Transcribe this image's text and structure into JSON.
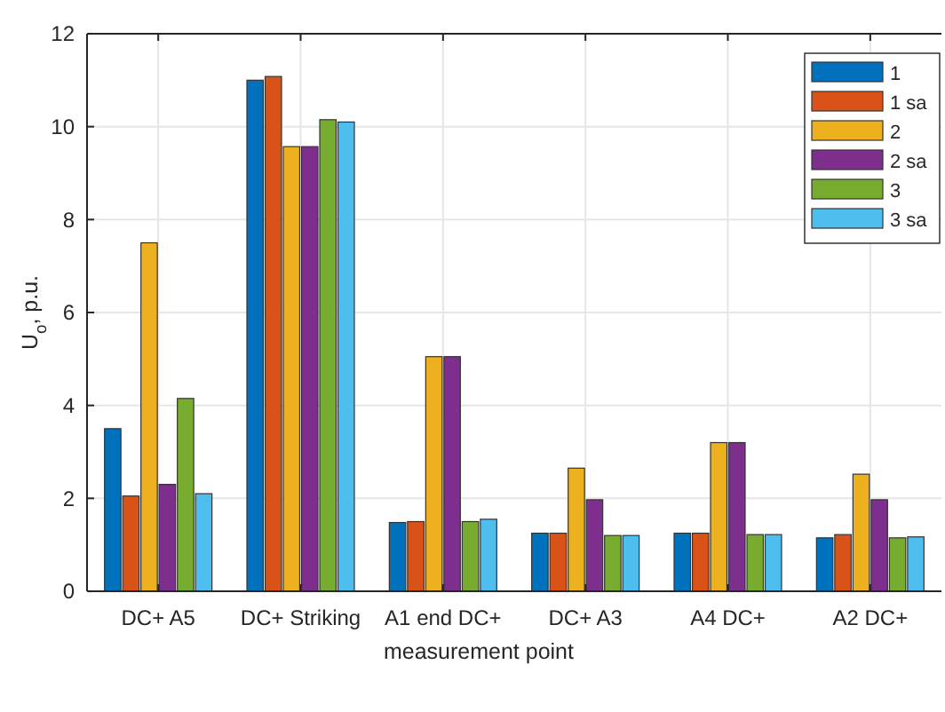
{
  "chart_data": {
    "type": "bar",
    "xlabel": "measurement point",
    "ylabel": "U$_{o}$, p.u.",
    "categories": [
      "DC+ A5",
      "DC+ Striking",
      "A1 end DC+",
      "DC+ A3",
      "A4 DC+",
      "A2 DC+"
    ],
    "series": [
      {
        "name": "1",
        "color": "#0072bd",
        "values": [
          3.5,
          11.0,
          1.48,
          1.25,
          1.25,
          1.15
        ]
      },
      {
        "name": "1 sa",
        "color": "#d95319",
        "values": [
          2.05,
          11.08,
          1.5,
          1.25,
          1.25,
          1.22
        ]
      },
      {
        "name": "2",
        "color": "#edb120",
        "values": [
          7.5,
          9.57,
          5.05,
          2.65,
          3.2,
          2.52
        ]
      },
      {
        "name": "2 sa",
        "color": "#7e2f8e",
        "values": [
          2.3,
          9.57,
          5.05,
          1.97,
          3.2,
          1.97
        ]
      },
      {
        "name": "3",
        "color": "#77ac30",
        "values": [
          4.15,
          10.15,
          1.5,
          1.2,
          1.22,
          1.15
        ]
      },
      {
        "name": "3 sa",
        "color": "#4dbeee",
        "values": [
          2.1,
          10.1,
          1.55,
          1.2,
          1.22,
          1.17
        ]
      }
    ],
    "ylim": [
      0,
      12
    ],
    "yticks": [
      0,
      2,
      4,
      6,
      8,
      10,
      12
    ],
    "grid": true,
    "legend": "top right"
  }
}
